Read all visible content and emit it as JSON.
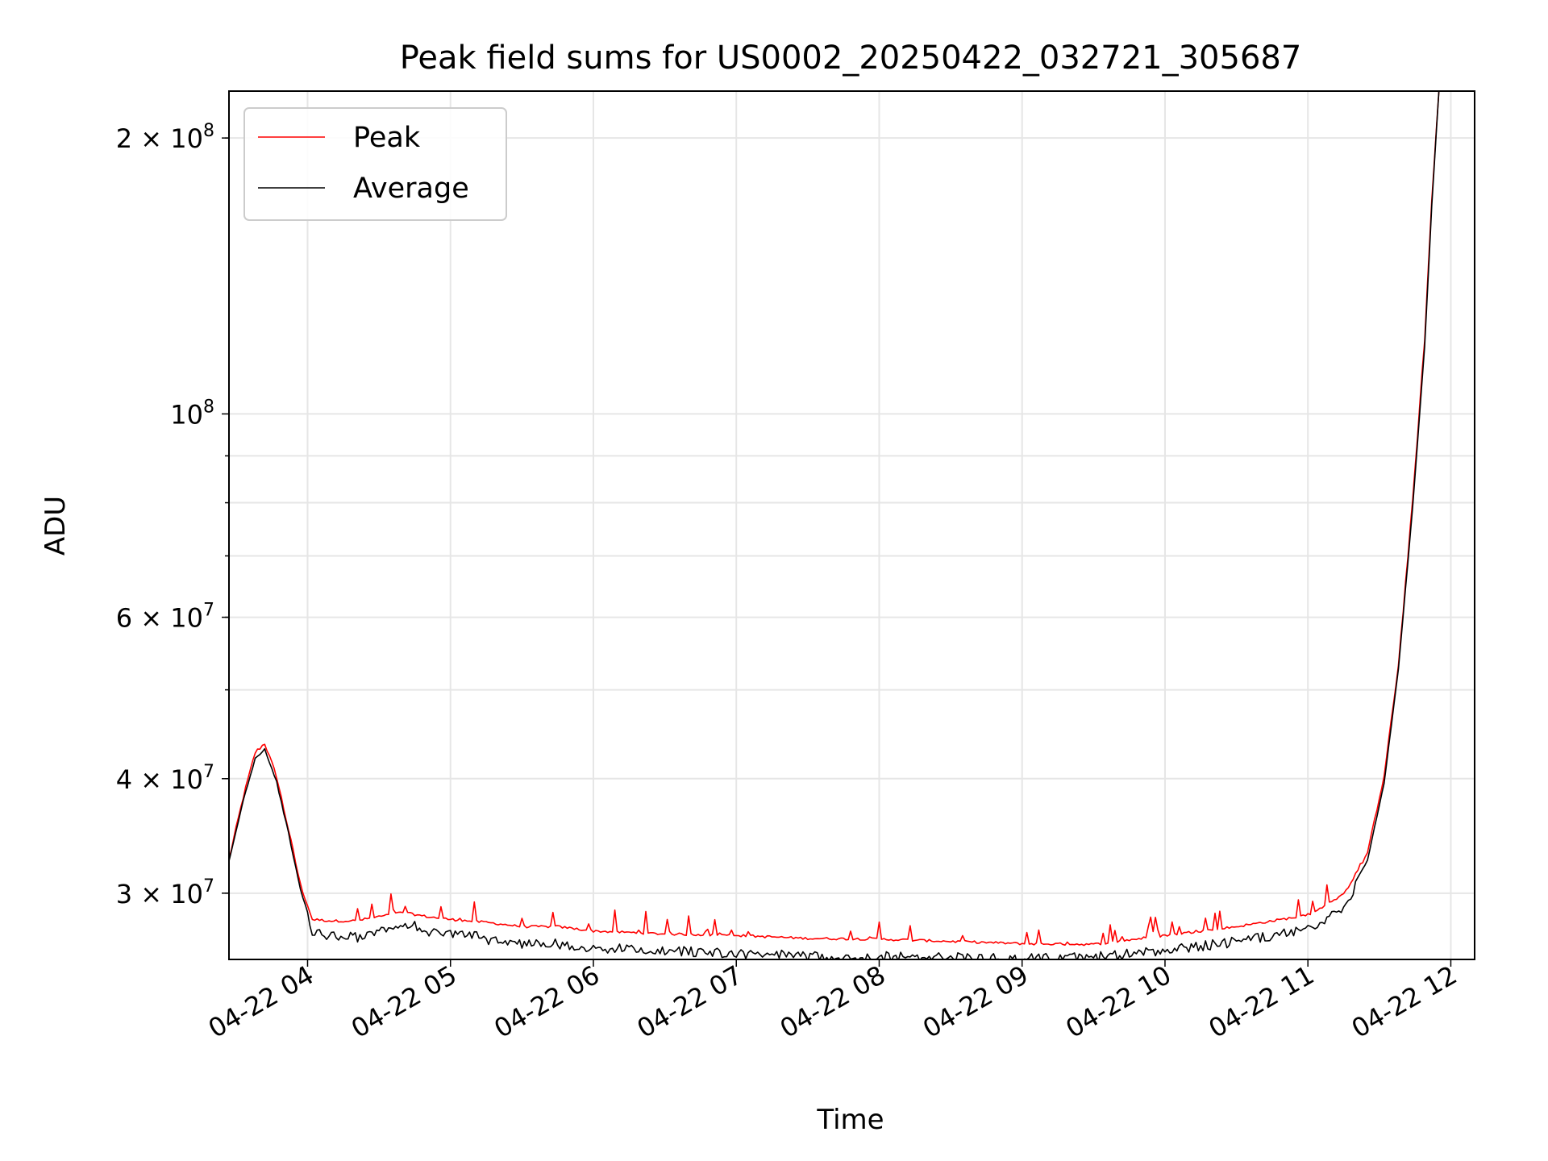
{
  "chart_data": {
    "type": "line",
    "title": "Peak field sums for US0002_20250422_032721_305687",
    "xlabel": "Time",
    "ylabel": "ADU",
    "y_scale": "log",
    "grid": true,
    "legend_position": "top-left",
    "xlim": [
      "2025-04-22 03:27",
      "2025-04-22 12:10"
    ],
    "ylim": [
      25400000,
      225000000
    ],
    "x_ticks": [
      "04-22 04",
      "04-22 05",
      "04-22 06",
      "04-22 07",
      "04-22 08",
      "04-22 09",
      "04-22 10",
      "04-22 11",
      "04-22 12"
    ],
    "y_ticks": [
      {
        "value": 200000000,
        "mantissa": "2",
        "exponent": "8"
      },
      {
        "value": 100000000,
        "mantissa": "",
        "exponent": "8"
      },
      {
        "value": 60000000,
        "mantissa": "6",
        "exponent": "7"
      },
      {
        "value": 40000000,
        "mantissa": "4",
        "exponent": "7"
      },
      {
        "value": 30000000,
        "mantissa": "3",
        "exponent": "7"
      }
    ],
    "series": [
      {
        "name": "Peak",
        "color": "#ff0000",
        "points": [
          [
            "2025-04-22 03:27",
            32500000
          ],
          [
            "2025-04-22 03:33",
            38000000
          ],
          [
            "2025-04-22 03:38",
            42500000
          ],
          [
            "2025-04-22 03:42",
            43500000
          ],
          [
            "2025-04-22 03:47",
            40000000
          ],
          [
            "2025-04-22 03:52",
            35000000
          ],
          [
            "2025-04-22 03:57",
            30500000
          ],
          [
            "2025-04-22 04:02",
            28000000
          ],
          [
            "2025-04-22 04:10",
            27900000
          ],
          [
            "2025-04-22 04:20",
            27900000
          ],
          [
            "2025-04-22 04:30",
            28200000
          ],
          [
            "2025-04-22 04:40",
            28500000
          ],
          [
            "2025-04-22 04:50",
            28200000
          ],
          [
            "2025-04-22 05:00",
            28000000
          ],
          [
            "2025-04-22 05:15",
            27800000
          ],
          [
            "2025-04-22 05:30",
            27500000
          ],
          [
            "2025-04-22 05:45",
            27500000
          ],
          [
            "2025-04-22 06:00",
            27200000
          ],
          [
            "2025-04-22 06:30",
            27000000
          ],
          [
            "2025-04-22 07:00",
            26900000
          ],
          [
            "2025-04-22 07:30",
            26700000
          ],
          [
            "2025-04-22 08:00",
            26650000
          ],
          [
            "2025-04-22 08:30",
            26500000
          ],
          [
            "2025-04-22 09:00",
            26350000
          ],
          [
            "2025-04-22 09:30",
            26300000
          ],
          [
            "2025-04-22 10:00",
            26900000
          ],
          [
            "2025-04-22 10:30",
            27500000
          ],
          [
            "2025-04-22 11:00",
            28300000
          ],
          [
            "2025-04-22 11:15",
            29800000
          ],
          [
            "2025-04-22 11:25",
            33000000
          ],
          [
            "2025-04-22 11:32",
            40000000
          ],
          [
            "2025-04-22 11:38",
            53000000
          ],
          [
            "2025-04-22 11:44",
            80000000
          ],
          [
            "2025-04-22 11:49",
            120000000
          ],
          [
            "2025-04-22 11:52",
            170000000
          ],
          [
            "2025-04-22 11:55",
            225000000
          ]
        ]
      },
      {
        "name": "Average",
        "color": "#000000",
        "points": [
          [
            "2025-04-22 03:27",
            32400000
          ],
          [
            "2025-04-22 03:33",
            37800000
          ],
          [
            "2025-04-22 03:38",
            42000000
          ],
          [
            "2025-04-22 03:42",
            43000000
          ],
          [
            "2025-04-22 03:47",
            39600000
          ],
          [
            "2025-04-22 03:52",
            34800000
          ],
          [
            "2025-04-22 03:57",
            30200000
          ],
          [
            "2025-04-22 04:02",
            27500000
          ],
          [
            "2025-04-22 04:10",
            27300000
          ],
          [
            "2025-04-22 04:20",
            27200000
          ],
          [
            "2025-04-22 04:25",
            27200000
          ],
          [
            "2025-04-22 04:30",
            27700000
          ],
          [
            "2025-04-22 04:40",
            27800000
          ],
          [
            "2025-04-22 04:45",
            28100000
          ],
          [
            "2025-04-22 04:50",
            27500000
          ],
          [
            "2025-04-22 05:00",
            27500000
          ],
          [
            "2025-04-22 05:05",
            27600000
          ],
          [
            "2025-04-22 05:15",
            27000000
          ],
          [
            "2025-04-22 05:30",
            26800000
          ],
          [
            "2025-04-22 05:45",
            26800000
          ],
          [
            "2025-04-22 05:50",
            26500000
          ],
          [
            "2025-04-22 06:30",
            26300000
          ],
          [
            "2025-04-22 07:00",
            26100000
          ],
          [
            "2025-04-22 07:30",
            25950000
          ],
          [
            "2025-04-22 08:00",
            25900000
          ],
          [
            "2025-04-22 08:30",
            25850000
          ],
          [
            "2025-04-22 09:00",
            25750000
          ],
          [
            "2025-04-22 09:30",
            25850000
          ],
          [
            "2025-04-22 10:00",
            26300000
          ],
          [
            "2025-04-22 10:30",
            26900000
          ],
          [
            "2025-04-22 11:00",
            27700000
          ],
          [
            "2025-04-22 11:15",
            29200000
          ],
          [
            "2025-04-22 11:25",
            32500000
          ],
          [
            "2025-04-22 11:32",
            39500000
          ],
          [
            "2025-04-22 11:38",
            52500000
          ],
          [
            "2025-04-22 11:44",
            79000000
          ],
          [
            "2025-04-22 11:49",
            118000000
          ],
          [
            "2025-04-22 11:52",
            168000000
          ],
          [
            "2025-04-22 11:55",
            225000000
          ]
        ]
      }
    ]
  }
}
